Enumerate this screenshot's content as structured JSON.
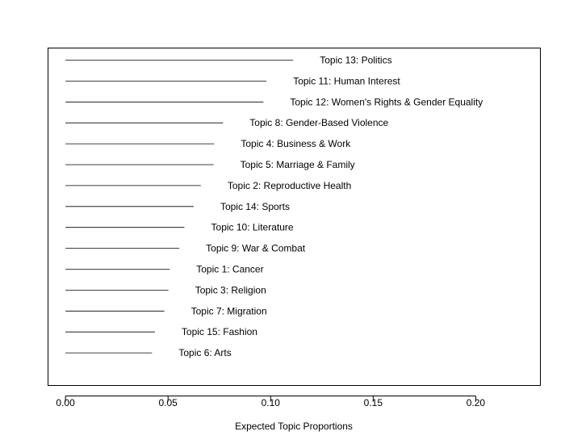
{
  "chart_data": {
    "type": "bar",
    "orientation": "horizontal",
    "xlabel": "Expected Topic Proportions",
    "xlim": [
      -0.0085,
      0.2315
    ],
    "xticks": [
      "0.00",
      "0.05",
      "0.10",
      "0.15",
      "0.20"
    ],
    "tick_values": [
      0,
      0.05,
      0.1,
      0.15,
      0.2
    ],
    "grid": false,
    "categories": [
      "Topic 13: Politics",
      "Topic 11: Human Interest",
      "Topic 12: Women's Rights & Gender Equality",
      "Topic 8: Gender-Based Violence",
      "Topic 4: Business & Work",
      "Topic 5: Marriage & Family",
      "Topic 2: Reproductive Health",
      "Topic 14: Sports",
      "Topic 10: Literature",
      "Topic 9: War & Combat",
      "Topic 1: Cancer",
      "Topic 3: Religion",
      "Topic 7: Migration",
      "Topic 15: Fashion",
      "Topic 6: Arts"
    ],
    "values": [
      0.111,
      0.098,
      0.0965,
      0.0768,
      0.0725,
      0.0722,
      0.066,
      0.0625,
      0.058,
      0.0555,
      0.0508,
      0.0502,
      0.0482,
      0.0436,
      0.0422
    ]
  }
}
